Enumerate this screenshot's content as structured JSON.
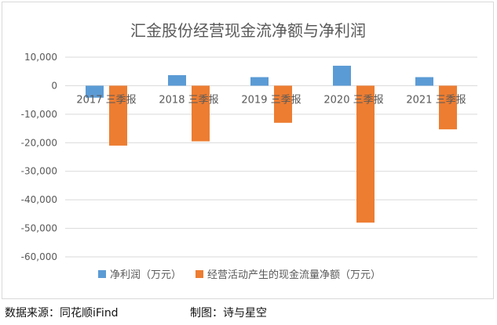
{
  "chart_data": {
    "type": "bar",
    "title": "汇金股份经营现金流净额与净利润",
    "categories": [
      "2017 三季报",
      "2018 三季报",
      "2019 三季报",
      "2020 三季报",
      "2021 三季报"
    ],
    "series": [
      {
        "name": "净利润（万元）",
        "color": "#5b9bd5",
        "values": [
          -4200,
          3700,
          3000,
          7000,
          3000
        ]
      },
      {
        "name": "经营活动产生的现金流量净额（万元）",
        "color": "#ed7d31",
        "values": [
          -21000,
          -19500,
          -13000,
          -48000,
          -15300
        ]
      }
    ],
    "ylim": [
      -60000,
      10000
    ],
    "yticks": [
      10000,
      0,
      -10000,
      -20000,
      -30000,
      -40000,
      -50000,
      -60000
    ],
    "ytick_labels": [
      "10,000",
      "0",
      "-10,000",
      "-20,000",
      "-30,000",
      "-40,000",
      "-50,000",
      "-60,000"
    ],
    "legend_position": "bottom",
    "grid": true
  },
  "footer": {
    "source": "数据来源：同花顺iFind",
    "maker": "制图：诗与星空"
  },
  "colors": {
    "grid": "#d9d9d9",
    "axis_text": "#595959",
    "title": "#595959"
  }
}
